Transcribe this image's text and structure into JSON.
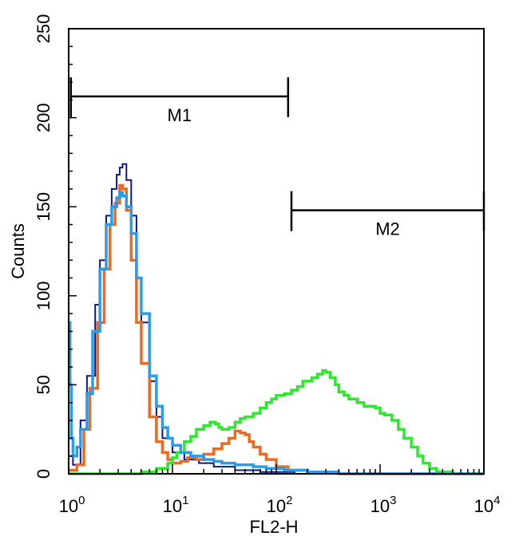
{
  "chart_data": {
    "type": "line",
    "title": "",
    "xlabel": "FL2-H",
    "ylabel": "Counts",
    "xscale": "log",
    "xlim": [
      1,
      10000
    ],
    "ylim": [
      0,
      250
    ],
    "grid": false,
    "y_ticks": [
      0,
      50,
      100,
      150,
      200,
      250
    ],
    "y_tick_labels": [
      "0",
      "50",
      "100",
      "150",
      "200",
      "250"
    ],
    "x_ticks": [
      {
        "value": 1,
        "base": "10",
        "exp": "0"
      },
      {
        "value": 10,
        "base": "10",
        "exp": "1"
      },
      {
        "value": 100,
        "base": "10",
        "exp": "2"
      },
      {
        "value": 1000,
        "base": "10",
        "exp": "3"
      },
      {
        "value": 10000,
        "base": "10",
        "exp": "4"
      }
    ],
    "markers": [
      {
        "name": "M1",
        "x_start": 1.05,
        "x_end": 130,
        "y": 212
      },
      {
        "name": "M2",
        "x_start": 140,
        "x_end": 10000,
        "y": 148
      }
    ],
    "series": [
      {
        "name": "navy",
        "color": "#0a1a8c",
        "points": [
          [
            1.0,
            10
          ],
          [
            1.1,
            5
          ],
          [
            1.3,
            30
          ],
          [
            1.5,
            55
          ],
          [
            1.8,
            95
          ],
          [
            2.0,
            120
          ],
          [
            2.3,
            145
          ],
          [
            2.6,
            160
          ],
          [
            2.9,
            168
          ],
          [
            3.1,
            172
          ],
          [
            3.3,
            174
          ],
          [
            3.6,
            165
          ],
          [
            4.0,
            145
          ],
          [
            4.5,
            110
          ],
          [
            5.0,
            85
          ],
          [
            6.0,
            52
          ],
          [
            7.0,
            32
          ],
          [
            8.0,
            20
          ],
          [
            10.0,
            12
          ],
          [
            13.0,
            8
          ],
          [
            18.0,
            6
          ],
          [
            25.0,
            4
          ],
          [
            40.0,
            2
          ],
          [
            70.0,
            1
          ],
          [
            150.0,
            0
          ],
          [
            10000.0,
            0
          ]
        ]
      },
      {
        "name": "orange",
        "color": "#ee6a1f",
        "points": [
          [
            1.0,
            2
          ],
          [
            1.2,
            5
          ],
          [
            1.4,
            25
          ],
          [
            1.6,
            48
          ],
          [
            1.9,
            85
          ],
          [
            2.2,
            115
          ],
          [
            2.5,
            140
          ],
          [
            2.8,
            152
          ],
          [
            3.1,
            162
          ],
          [
            3.3,
            160
          ],
          [
            3.6,
            148
          ],
          [
            4.0,
            120
          ],
          [
            4.5,
            85
          ],
          [
            5.0,
            62
          ],
          [
            6.0,
            32
          ],
          [
            7.0,
            18
          ],
          [
            8.0,
            12
          ],
          [
            9.0,
            8
          ],
          [
            10.0,
            6
          ],
          [
            12.0,
            7
          ],
          [
            14.0,
            9
          ],
          [
            17.0,
            8
          ],
          [
            20.0,
            11
          ],
          [
            25.0,
            14
          ],
          [
            30.0,
            17
          ],
          [
            35.0,
            20
          ],
          [
            40.0,
            24
          ],
          [
            45.0,
            23
          ],
          [
            50.0,
            22
          ],
          [
            55.0,
            18
          ],
          [
            60.0,
            15
          ],
          [
            70.0,
            11
          ],
          [
            80.0,
            8
          ],
          [
            100.0,
            4
          ],
          [
            130.0,
            2
          ],
          [
            200.0,
            1
          ],
          [
            400.0,
            0
          ],
          [
            10000.0,
            0
          ]
        ]
      },
      {
        "name": "green",
        "color": "#2ee82e",
        "points": [
          [
            1.0,
            0
          ],
          [
            5.0,
            1
          ],
          [
            7.0,
            3
          ],
          [
            9.0,
            6
          ],
          [
            10.0,
            9
          ],
          [
            11.0,
            12
          ],
          [
            13.0,
            18
          ],
          [
            15.0,
            21
          ],
          [
            17.0,
            25
          ],
          [
            20.0,
            27
          ],
          [
            23.0,
            29
          ],
          [
            26.0,
            28
          ],
          [
            28.0,
            26
          ],
          [
            30.0,
            25
          ],
          [
            35.0,
            26
          ],
          [
            40.0,
            29
          ],
          [
            45.0,
            31
          ],
          [
            50.0,
            32
          ],
          [
            60.0,
            34
          ],
          [
            70.0,
            37
          ],
          [
            80.0,
            40
          ],
          [
            90.0,
            42
          ],
          [
            100.0,
            44
          ],
          [
            120.0,
            45
          ],
          [
            140.0,
            47
          ],
          [
            160.0,
            49
          ],
          [
            180.0,
            52
          ],
          [
            200.0,
            52
          ],
          [
            220.0,
            54
          ],
          [
            250.0,
            56
          ],
          [
            280.0,
            58
          ],
          [
            300.0,
            57
          ],
          [
            330.0,
            54
          ],
          [
            370.0,
            50
          ],
          [
            400.0,
            46
          ],
          [
            450.0,
            44
          ],
          [
            500.0,
            42
          ],
          [
            550.0,
            42
          ],
          [
            600.0,
            40
          ],
          [
            700.0,
            38
          ],
          [
            800.0,
            38
          ],
          [
            900.0,
            37
          ],
          [
            1000.0,
            34
          ],
          [
            1100.0,
            33
          ],
          [
            1300.0,
            30
          ],
          [
            1500.0,
            25
          ],
          [
            1700.0,
            20
          ],
          [
            2000.0,
            15
          ],
          [
            2300.0,
            10
          ],
          [
            2600.0,
            6
          ],
          [
            3000.0,
            3
          ],
          [
            3500.0,
            1
          ],
          [
            5000.0,
            0
          ],
          [
            10000.0,
            0
          ]
        ]
      },
      {
        "name": "light blue",
        "color": "#2b9de8",
        "points": [
          [
            1.0,
            85
          ],
          [
            1.03,
            50
          ],
          [
            1.06,
            20
          ],
          [
            1.1,
            10
          ],
          [
            1.2,
            15
          ],
          [
            1.3,
            25
          ],
          [
            1.5,
            45
          ],
          [
            1.7,
            80
          ],
          [
            2.0,
            115
          ],
          [
            2.3,
            140
          ],
          [
            2.6,
            150
          ],
          [
            2.9,
            155
          ],
          [
            3.1,
            158
          ],
          [
            3.3,
            156
          ],
          [
            3.6,
            150
          ],
          [
            4.0,
            135
          ],
          [
            4.5,
            110
          ],
          [
            5.0,
            90
          ],
          [
            6.0,
            55
          ],
          [
            7.0,
            38
          ],
          [
            8.0,
            26
          ],
          [
            9.0,
            20
          ],
          [
            10.0,
            16
          ],
          [
            12.0,
            12
          ],
          [
            15.0,
            10
          ],
          [
            20.0,
            8
          ],
          [
            25.0,
            7
          ],
          [
            30.0,
            6
          ],
          [
            40.0,
            5
          ],
          [
            60.0,
            4
          ],
          [
            80.0,
            3
          ],
          [
            120.0,
            2
          ],
          [
            200.0,
            1
          ],
          [
            400.0,
            0
          ],
          [
            10000.0,
            0
          ]
        ]
      }
    ]
  }
}
